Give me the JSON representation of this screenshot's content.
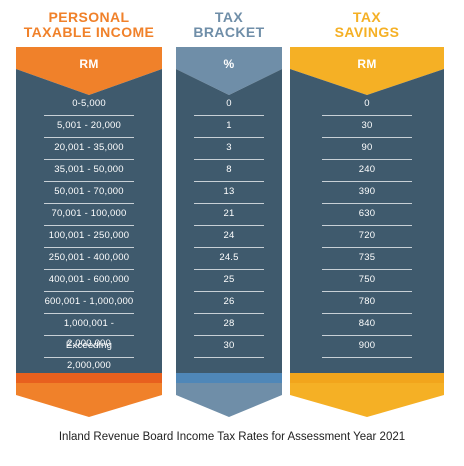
{
  "columns": [
    {
      "title_line1": "PERSONAL",
      "title_line2": "TAXABLE INCOME",
      "unit": "RM",
      "accent_color": "#f0812a",
      "rows": [
        "0-5,000",
        "5,001 - 20,000",
        "20,001 - 35,000",
        "35,001 - 50,000",
        "50,001 - 70,000",
        "70,001 - 100,000",
        "100,001 - 250,000",
        "250,001 - 400,000",
        "400,001 - 600,000",
        "600,001 - 1,000,000",
        "1,000,001 - 2,000,000",
        "Exceeding 2,000,000"
      ]
    },
    {
      "title_line1": "TAX",
      "title_line2": "BRACKET",
      "unit": "%",
      "accent_color": "#6f8ea8",
      "rows": [
        "0",
        "1",
        "3",
        "8",
        "13",
        "21",
        "24",
        "24.5",
        "25",
        "26",
        "28",
        "30"
      ]
    },
    {
      "title_line1": "TAX",
      "title_line2": "SAVINGS",
      "unit": "RM",
      "accent_color": "#f5b025",
      "rows": [
        "0",
        "30",
        "90",
        "240",
        "390",
        "630",
        "720",
        "735",
        "750",
        "780",
        "840",
        "900"
      ]
    }
  ],
  "caption": "Inland Revenue Board Income Tax Rates for Assessment Year 2021",
  "body_color": "#3f5a6d"
}
